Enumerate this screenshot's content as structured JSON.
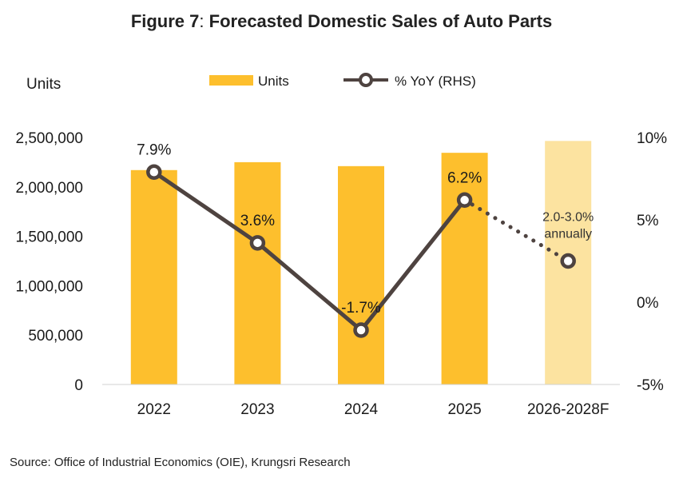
{
  "title": {
    "prefix": "Figure 7",
    "separator": ":",
    "text": "Forecasted Domestic Sales of Auto Parts"
  },
  "source": "Source: Office of Industrial Economics (OIE), Krungsri Research",
  "colors": {
    "bar": "#FDBF2D",
    "bar_forecast": "#FCE3A0",
    "line": "#4E4340",
    "marker_fill": "#ffffff"
  },
  "chart_data": {
    "type": "bar",
    "categories": [
      "2022",
      "2023",
      "2024",
      "2025",
      "2026-2028F"
    ],
    "y_left": {
      "label": "Units",
      "ylim": [
        0,
        2500000
      ],
      "ticks": [
        "0",
        "500,000",
        "1,000,000",
        "1,500,000",
        "2,000,000",
        "2,500,000"
      ],
      "tick_values": [
        0,
        500000,
        1000000,
        1500000,
        2000000,
        2500000
      ]
    },
    "y_right": {
      "ylim": [
        -5,
        10
      ],
      "ticks": [
        "-5%",
        "0%",
        "5%",
        "10%"
      ],
      "tick_values": [
        -5,
        0,
        5,
        10
      ]
    },
    "series": [
      {
        "name": "Units",
        "type": "bar",
        "axis": "left",
        "values": [
          2170000,
          2250000,
          2210000,
          2345000,
          2465000
        ],
        "forecast_index": [
          4
        ]
      },
      {
        "name": "% YoY (RHS)",
        "type": "line",
        "axis": "right",
        "values": [
          7.9,
          3.6,
          -1.7,
          6.2,
          2.5
        ],
        "labels": [
          "7.9%",
          "3.6%",
          "-1.7%",
          "6.2%",
          ""
        ],
        "forecast_index": [
          4
        ]
      }
    ],
    "annotation": {
      "line1": "2.0-3.0%",
      "line2": "annually"
    },
    "legend": "top-center",
    "grid": false
  }
}
